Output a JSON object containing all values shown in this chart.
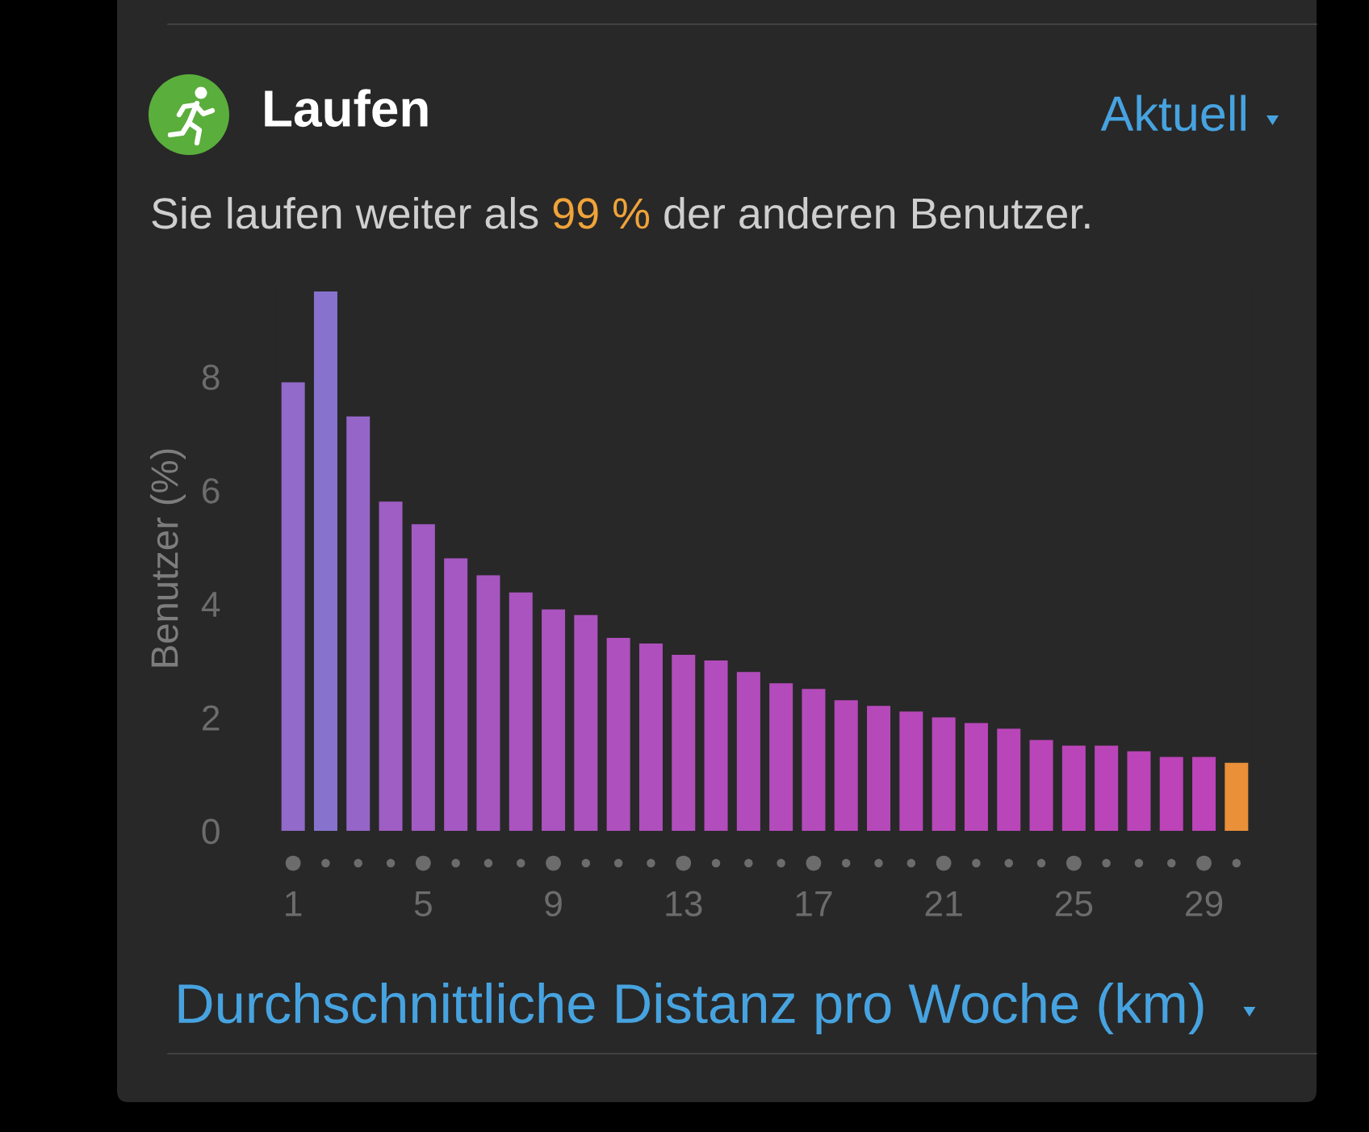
{
  "chart_data": {
    "type": "bar",
    "title": "Laufen",
    "subtitle": "Sie laufen weiter als 99 % der anderen Benutzer.",
    "xlabel": "Durchschnittliche Distanz pro Woche (km)",
    "ylabel": "Benutzer (%)",
    "annotations": [
      "Aktuell"
    ],
    "categories": [
      "1",
      null,
      null,
      null,
      "5",
      null,
      null,
      null,
      "9",
      null,
      null,
      null,
      "13",
      null,
      null,
      null,
      "17",
      null,
      null,
      null,
      "21",
      null,
      null,
      null,
      "25",
      null,
      null,
      null,
      "29",
      null
    ],
    "values": [
      7.9,
      9.5,
      7.3,
      5.8,
      5.4,
      4.8,
      4.5,
      4.2,
      3.9,
      3.8,
      3.4,
      3.3,
      3.1,
      3.0,
      2.8,
      2.6,
      2.5,
      2.3,
      2.2,
      2.1,
      2.0,
      1.9,
      1.8,
      1.6,
      1.5,
      1.5,
      1.4,
      1.3,
      1.3,
      1.2
    ],
    "colors": [
      "#916aca",
      "#8773ce",
      "#9566c8",
      "#9f5ec4",
      "#a15bc3",
      "#a558c1",
      "#a756c0",
      "#a954bf",
      "#ab53bf",
      "#ac52be",
      "#ae50bd",
      "#af4fbd",
      "#b04ebc",
      "#b14dbc",
      "#b24cbc",
      "#b34bbb",
      "#b44bbb",
      "#b549ba",
      "#b649ba",
      "#b648ba",
      "#b748b9",
      "#b847b9",
      "#b846b9",
      "#ba45b8",
      "#ba45b8",
      "#ba45b8",
      "#bb44b8",
      "#bc43b8",
      "#bc43b8",
      "#e99038"
    ],
    "ylim": [
      0,
      9.6
    ],
    "yticks": [
      0,
      2,
      4,
      6,
      8
    ]
  }
}
